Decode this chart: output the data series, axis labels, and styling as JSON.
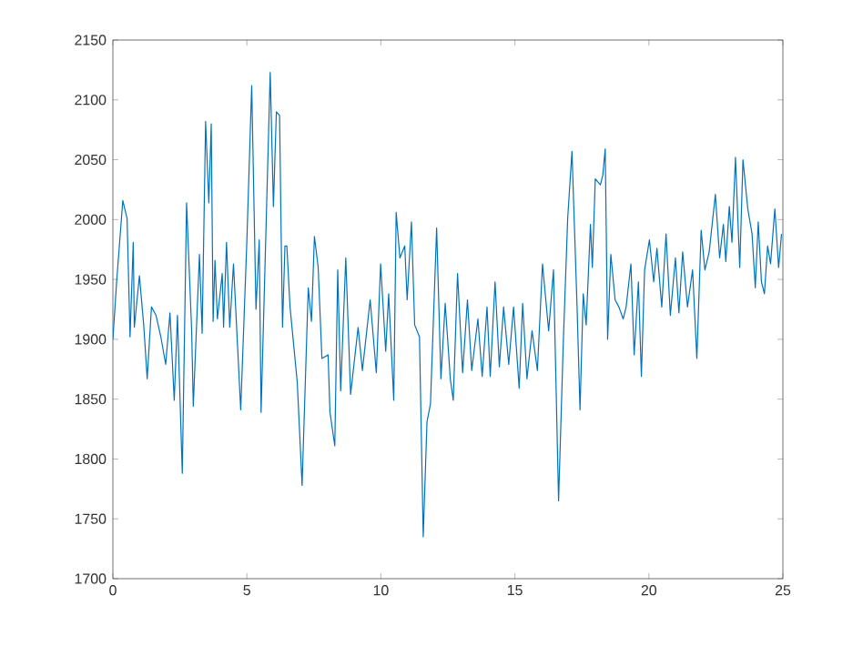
{
  "chart_data": {
    "type": "line",
    "xlim": [
      0,
      25
    ],
    "ylim": [
      1700,
      2150
    ],
    "xticks": [
      0,
      5,
      10,
      15,
      20,
      25
    ],
    "yticks": [
      1700,
      1750,
      1800,
      1850,
      1900,
      1950,
      2000,
      2050,
      2100,
      2150
    ],
    "grid": false,
    "series": [
      {
        "color": "#0072bd",
        "x": [
          0.0,
          0.14,
          0.37,
          0.53,
          0.64,
          0.76,
          0.8,
          0.99,
          1.15,
          1.28,
          1.44,
          1.61,
          1.79,
          1.97,
          2.13,
          2.29,
          2.41,
          2.59,
          2.75,
          2.94,
          3.0,
          3.23,
          3.33,
          3.46,
          3.58,
          3.67,
          3.74,
          3.81,
          3.9,
          4.08,
          4.13,
          4.24,
          4.36,
          4.5,
          4.77,
          5.0,
          5.18,
          5.34,
          5.46,
          5.53,
          5.87,
          5.99,
          6.1,
          6.22,
          6.28,
          6.33,
          6.42,
          6.49,
          6.61,
          6.88,
          7.06,
          7.29,
          7.41,
          7.52,
          7.66,
          7.8,
          8.03,
          8.1,
          8.28,
          8.39,
          8.5,
          8.69,
          8.87,
          9.15,
          9.31,
          9.6,
          9.83,
          9.99,
          10.18,
          10.29,
          10.48,
          10.57,
          10.71,
          10.89,
          10.98,
          11.14,
          11.26,
          11.44,
          11.58,
          11.72,
          11.85,
          12.08,
          12.24,
          12.4,
          12.59,
          12.7,
          12.86,
          13.05,
          13.23,
          13.39,
          13.62,
          13.78,
          13.96,
          14.08,
          14.26,
          14.42,
          14.58,
          14.77,
          14.95,
          15.16,
          15.29,
          15.45,
          15.64,
          15.84,
          16.03,
          16.26,
          16.44,
          16.63,
          16.81,
          16.97,
          17.13,
          17.32,
          17.43,
          17.55,
          17.66,
          17.82,
          17.89,
          18.0,
          18.19,
          18.28,
          18.37,
          18.46,
          18.58,
          18.74,
          18.88,
          19.04,
          19.15,
          19.33,
          19.45,
          19.61,
          19.72,
          19.84,
          20.02,
          20.18,
          20.3,
          20.48,
          20.64,
          20.8,
          20.99,
          21.12,
          21.26,
          21.44,
          21.63,
          21.79,
          21.95,
          22.09,
          22.25,
          22.48,
          22.64,
          22.78,
          22.87,
          23.0,
          23.1,
          23.23,
          23.39,
          23.51,
          23.69,
          23.85,
          23.97,
          24.08,
          24.2,
          24.31,
          24.43,
          24.54,
          24.7,
          24.84,
          24.95
        ],
        "values": [
          1900,
          1948,
          2016,
          2001,
          1902,
          1981,
          1910,
          1953,
          1912,
          1867,
          1927,
          1920,
          1902,
          1879,
          1922,
          1849,
          1920,
          1788,
          2014,
          1907,
          1844,
          1971,
          1905,
          2082,
          2014,
          2080,
          1915,
          1966,
          1917,
          1955,
          1910,
          1981,
          1910,
          1963,
          1841,
          1983,
          2112,
          1925,
          1983,
          1839,
          2123,
          2011,
          2090,
          2087,
          1986,
          1910,
          1978,
          1978,
          1927,
          1864,
          1778,
          1943,
          1915,
          1986,
          1960,
          1884,
          1887,
          1839,
          1811,
          1958,
          1857,
          1968,
          1854,
          1910,
          1874,
          1933,
          1872,
          1963,
          1890,
          1938,
          1849,
          2006,
          1968,
          1978,
          1933,
          1998,
          1912,
          1902,
          1735,
          1831,
          1846,
          1993,
          1867,
          1930,
          1867,
          1849,
          1955,
          1872,
          1933,
          1874,
          1917,
          1869,
          1927,
          1869,
          1948,
          1877,
          1927,
          1879,
          1927,
          1859,
          1930,
          1867,
          1907,
          1874,
          1963,
          1907,
          1958,
          1765,
          1900,
          2001,
          2057,
          1927,
          1841,
          1938,
          1912,
          1996,
          1960,
          2034,
          2029,
          2037,
          2059,
          1900,
          1971,
          1933,
          1927,
          1917,
          1927,
          1963,
          1887,
          1948,
          1869,
          1958,
          1983,
          1948,
          1976,
          1927,
          1988,
          1920,
          1968,
          1922,
          1973,
          1927,
          1958,
          1884,
          1991,
          1958,
          1973,
          2021,
          1968,
          1996,
          1965,
          2011,
          1981,
          2052,
          1960,
          2050,
          2009,
          1988,
          1943,
          1998,
          1948,
          1938,
          1978,
          1963,
          2009,
          1960,
          1988
        ]
      }
    ]
  }
}
